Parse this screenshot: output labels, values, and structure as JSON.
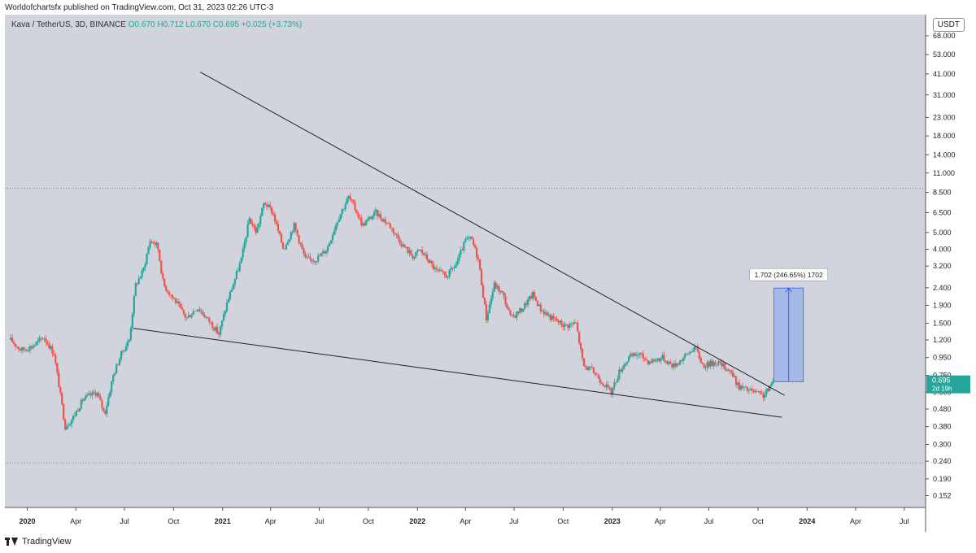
{
  "publisher_line": "Worldofchartsfx published on TradingView.com, Oct 31, 2023 02:26 UTC-3",
  "header": {
    "symbol": "Kava / TetherUS, 3D, BINANCE",
    "o": "O0.670",
    "h": "H0.712",
    "l": "L0.670",
    "c": "C0.695",
    "change": "+0.025 (+3.73%)"
  },
  "quote_currency": "USDT",
  "footer_brand": "TradingView",
  "measure_label": "1.702 (246.65%) 1702",
  "price_badge": {
    "price": "0.695",
    "countdown": "2d 19h"
  },
  "chart_data": {
    "type": "candlestick",
    "y_scale": "log",
    "ylim": [
      0.13,
      90
    ],
    "y_ticks": [
      "68.000",
      "53.000",
      "41.000",
      "31.000",
      "23.000",
      "18.000",
      "14.000",
      "11.000",
      "8.500",
      "6.500",
      "5.000",
      "4.000",
      "3.200",
      "2.400",
      "1.900",
      "1.500",
      "1.200",
      "0.950",
      "0.750",
      "0.600",
      "0.480",
      "0.380",
      "0.300",
      "0.240",
      "0.190",
      "0.152"
    ],
    "x_labels": [
      "2020",
      "Apr",
      "Jul",
      "Oct",
      "2021",
      "Apr",
      "Jul",
      "Oct",
      "2022",
      "Apr",
      "Jul",
      "Oct",
      "2023",
      "Apr",
      "Jul",
      "Oct",
      "2024",
      "Apr",
      "Jul"
    ],
    "x_label_bold": [
      "2020",
      "2021",
      "2022",
      "2023",
      "2024"
    ],
    "dotted_levels": [
      9.0,
      0.235
    ],
    "price_path": [
      [
        "2019-12-01",
        1.2
      ],
      [
        "2019-12-20",
        1.05
      ],
      [
        "2020-01-10",
        1.1
      ],
      [
        "2020-02-01",
        1.25
      ],
      [
        "2020-02-20",
        1.0
      ],
      [
        "2020-03-12",
        0.38
      ],
      [
        "2020-03-25",
        0.42
      ],
      [
        "2020-04-15",
        0.55
      ],
      [
        "2020-05-10",
        0.6
      ],
      [
        "2020-05-25",
        0.45
      ],
      [
        "2020-06-10",
        0.75
      ],
      [
        "2020-06-25",
        1.0
      ],
      [
        "2020-07-10",
        1.2
      ],
      [
        "2020-07-22",
        2.5
      ],
      [
        "2020-08-05",
        3.0
      ],
      [
        "2020-08-18",
        4.5
      ],
      [
        "2020-09-01",
        4.2
      ],
      [
        "2020-09-12",
        2.5
      ],
      [
        "2020-10-05",
        2.0
      ],
      [
        "2020-10-25",
        1.6
      ],
      [
        "2020-11-15",
        1.85
      ],
      [
        "2020-12-10",
        1.5
      ],
      [
        "2020-12-25",
        1.3
      ],
      [
        "2021-01-10",
        2.0
      ],
      [
        "2021-02-05",
        3.5
      ],
      [
        "2021-02-20",
        6.0
      ],
      [
        "2021-03-05",
        5.0
      ],
      [
        "2021-03-20",
        7.5
      ],
      [
        "2021-04-05",
        6.5
      ],
      [
        "2021-04-25",
        4.0
      ],
      [
        "2021-05-15",
        5.5
      ],
      [
        "2021-06-05",
        3.5
      ],
      [
        "2021-06-25",
        3.5
      ],
      [
        "2021-07-15",
        4.0
      ],
      [
        "2021-08-05",
        6.0
      ],
      [
        "2021-08-25",
        8.0
      ],
      [
        "2021-09-05",
        7.0
      ],
      [
        "2021-09-20",
        5.5
      ],
      [
        "2021-10-15",
        6.5
      ],
      [
        "2021-11-10",
        5.5
      ],
      [
        "2021-12-05",
        4.2
      ],
      [
        "2021-12-25",
        3.6
      ],
      [
        "2022-01-05",
        4.0
      ],
      [
        "2022-01-20",
        3.5
      ],
      [
        "2022-02-05",
        3.0
      ],
      [
        "2022-02-25",
        2.8
      ],
      [
        "2022-03-15",
        3.3
      ],
      [
        "2022-04-01",
        4.5
      ],
      [
        "2022-04-12",
        4.6
      ],
      [
        "2022-04-25",
        3.5
      ],
      [
        "2022-05-10",
        1.6
      ],
      [
        "2022-05-25",
        2.5
      ],
      [
        "2022-06-10",
        2.2
      ],
      [
        "2022-06-25",
        1.6
      ],
      [
        "2022-07-15",
        1.8
      ],
      [
        "2022-08-05",
        2.2
      ],
      [
        "2022-08-20",
        1.8
      ],
      [
        "2022-09-10",
        1.6
      ],
      [
        "2022-10-05",
        1.45
      ],
      [
        "2022-10-25",
        1.5
      ],
      [
        "2022-11-08",
        0.85
      ],
      [
        "2022-11-25",
        0.8
      ],
      [
        "2022-12-20",
        0.65
      ],
      [
        "2022-12-30",
        0.6
      ],
      [
        "2023-01-15",
        0.8
      ],
      [
        "2023-02-01",
        0.95
      ],
      [
        "2023-02-20",
        1.0
      ],
      [
        "2023-03-10",
        0.9
      ],
      [
        "2023-04-05",
        0.95
      ],
      [
        "2023-04-25",
        0.85
      ],
      [
        "2023-05-15",
        0.95
      ],
      [
        "2023-06-05",
        1.1
      ],
      [
        "2023-06-20",
        0.85
      ],
      [
        "2023-07-15",
        0.9
      ],
      [
        "2023-08-10",
        0.8
      ],
      [
        "2023-08-25",
        0.65
      ],
      [
        "2023-09-10",
        0.62
      ],
      [
        "2023-09-25",
        0.6
      ],
      [
        "2023-10-10",
        0.57
      ],
      [
        "2023-10-20",
        0.62
      ],
      [
        "2023-10-31",
        0.695
      ]
    ],
    "trendlines": [
      {
        "from": [
          "2020-11-20",
          42
        ],
        "to": [
          "2023-11-20",
          0.575
        ]
      },
      {
        "from": [
          "2020-07-18",
          1.4
        ],
        "to": [
          "2023-11-15",
          0.43
        ]
      }
    ],
    "measure": {
      "from_date": "2023-10-31",
      "to_date": "2023-12-25",
      "low": 0.69,
      "high": 2.392
    }
  },
  "colors": {
    "up": "#26a69a",
    "down": "#ef5350",
    "bg": "#d1d4dc",
    "line": "#222222",
    "measure_fill": "rgba(41,98,255,0.25)",
    "measure_stroke": "#2962ff"
  }
}
